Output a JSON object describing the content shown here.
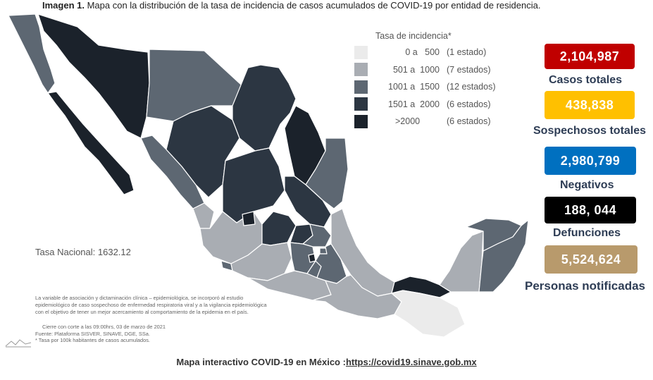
{
  "title": {
    "bold": "Imagen 1.",
    "text": "Mapa con la distribución de la tasa de incidencia de casos acumulados de COVID-19 por entidad de residencia."
  },
  "legend": {
    "title": "Tasa de incidencia*",
    "items": [
      {
        "range": "0 a   500",
        "count": "(1 estado)",
        "color": "#ebebeb"
      },
      {
        "range": "501 a  1000",
        "count": "(7 estados)",
        "color": "#a9adb3"
      },
      {
        "range": "1001 a  1500",
        "count": "(12 estados)",
        "color": "#5d6772"
      },
      {
        "range": "1501 a  2000",
        "count": "(6 estados)",
        "color": "#2c3642"
      },
      {
        "range": ">2000",
        "count": "(6 estados)",
        "color": "#1b222b"
      }
    ]
  },
  "stats": [
    {
      "value": "2,104,987",
      "label": "Casos totales",
      "color": "#c00000"
    },
    {
      "value": "438,838",
      "label": "Sospechosos totales",
      "color": "#ffc000"
    },
    {
      "value": "2,980,799",
      "label": "Negativos",
      "color": "#0070c0"
    },
    {
      "value": "188, 044",
      "label": "Defunciones",
      "color": "#000000"
    },
    {
      "value": "5,524,624",
      "label": "Personas notificadas",
      "color": "#b89a6c"
    }
  ],
  "tasa_nacional": "Tasa Nacional: 1632.12",
  "notes": [
    "La variable de asociación y dictaminación clínica – epidemiológica, se incorporó al estudio",
    "epidemiológico de caso sospechoso de enfermedad respiratoria viral y a la vigilancia epidemiológica",
    "con el objetivo de tener un mejor acercamiento al comportamiento de la epidemia en el país."
  ],
  "notes2": [
    "Cierre con corte a las 09:00hrs, 03 de marzo de 2021",
    "Fuente: Plataforma SISVER, SINAVE, DGE, SSa.",
    "* Tasa por 100k habitantes de casos acumulados."
  ],
  "footer": {
    "text": "Mapa interactivo COVID-19 en México :",
    "link": "https://covid19.sinave.gob.mx"
  }
}
